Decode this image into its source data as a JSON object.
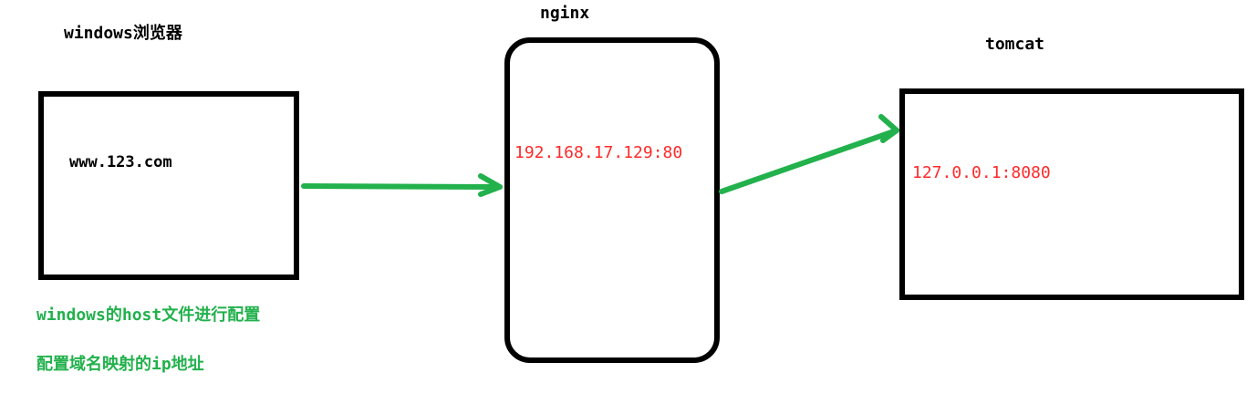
{
  "browser": {
    "title": "windows浏览器",
    "url": "www.123.com"
  },
  "nginx": {
    "title": "nginx",
    "address": "192.168.17.129:80"
  },
  "tomcat": {
    "title": "tomcat",
    "address": "127.0.0.1:8080"
  },
  "notes": [
    "windows的host文件进行配置",
    "配置域名映射的ip地址"
  ],
  "colors": {
    "arrow": "#22b14c",
    "address_text": "#ff2a2a",
    "note_text": "#22b14c",
    "box_border": "#000000"
  }
}
